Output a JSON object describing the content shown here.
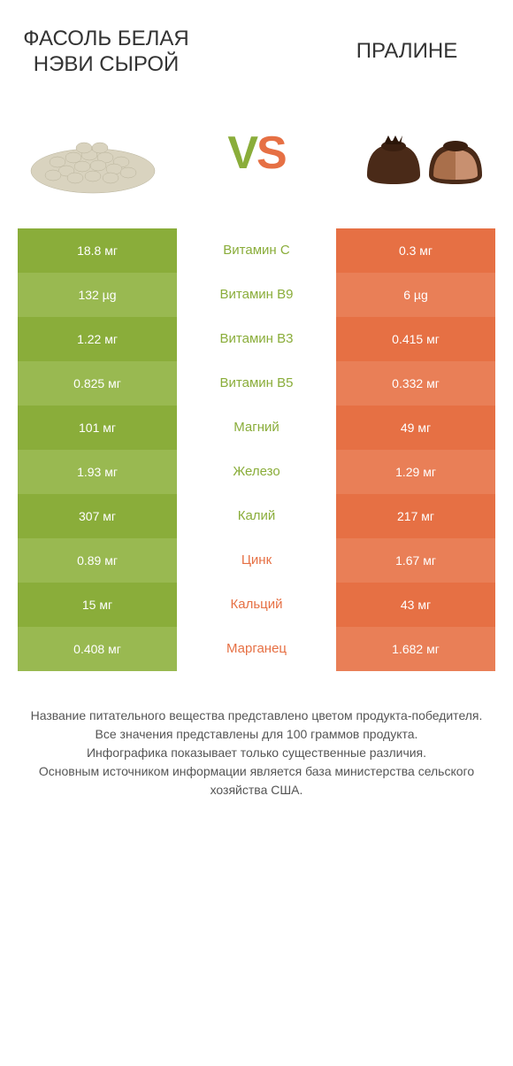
{
  "header": {
    "left_title": "ФАСОЛЬ БЕЛАЯ НЭВИ СЫРОЙ",
    "right_title": "ПРАЛИНЕ"
  },
  "vs": {
    "v": "V",
    "s": "S"
  },
  "colors": {
    "left_even": "#8aad3a",
    "left_odd": "#99b951",
    "right_even": "#e67044",
    "right_odd": "#e97f57",
    "left_text": "#ffffff",
    "right_text": "#ffffff",
    "mid_left_color": "#8aad3a",
    "mid_right_color": "#e67044",
    "mid_bg": "#ffffff"
  },
  "rows": [
    {
      "left": "18.8 мг",
      "mid": "Витамин C",
      "right": "0.3 мг",
      "winner": "left"
    },
    {
      "left": "132 µg",
      "mid": "Витамин B9",
      "right": "6 µg",
      "winner": "left"
    },
    {
      "left": "1.22 мг",
      "mid": "Витамин B3",
      "right": "0.415 мг",
      "winner": "left"
    },
    {
      "left": "0.825 мг",
      "mid": "Витамин B5",
      "right": "0.332 мг",
      "winner": "left"
    },
    {
      "left": "101 мг",
      "mid": "Магний",
      "right": "49 мг",
      "winner": "left"
    },
    {
      "left": "1.93 мг",
      "mid": "Железо",
      "right": "1.29 мг",
      "winner": "left"
    },
    {
      "left": "307 мг",
      "mid": "Калий",
      "right": "217 мг",
      "winner": "left"
    },
    {
      "left": "0.89 мг",
      "mid": "Цинк",
      "right": "1.67 мг",
      "winner": "right"
    },
    {
      "left": "15 мг",
      "mid": "Кальций",
      "right": "43 мг",
      "winner": "right"
    },
    {
      "left": "0.408 мг",
      "mid": "Марганец",
      "right": "1.682 мг",
      "winner": "right"
    }
  ],
  "footer": {
    "line1": "Название питательного вещества представлено цветом продукта-победителя.",
    "line2": "Все значения представлены для 100 граммов продукта.",
    "line3": "Инфографика показывает только существенные различия.",
    "line4": "Основным источником информации является база министерства сельского хозяйства США."
  }
}
